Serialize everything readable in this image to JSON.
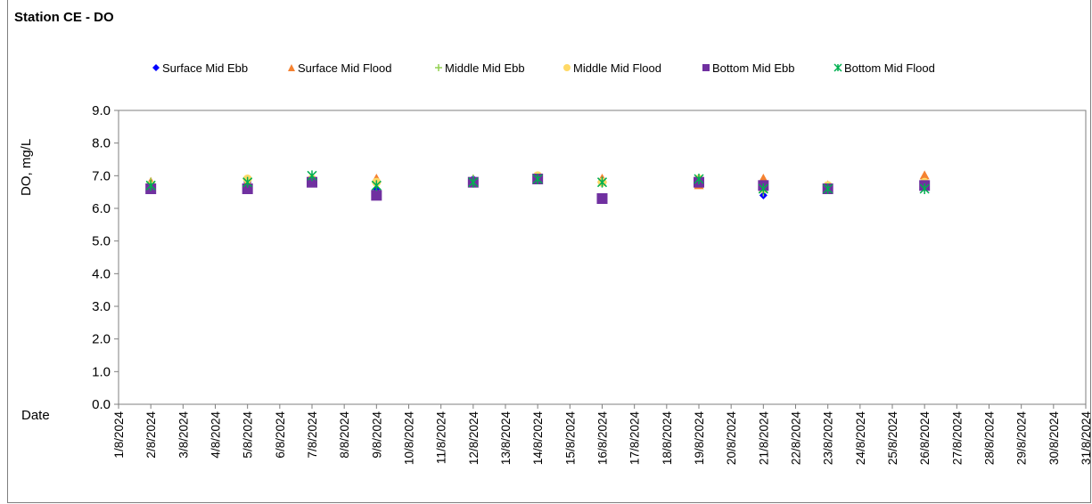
{
  "chart_data": {
    "type": "scatter",
    "title": "Station CE - DO",
    "xlabel": "Date",
    "ylabel": "DO, mg/L",
    "ylim": [
      0,
      9
    ],
    "yticks": [
      "0.0",
      "1.0",
      "2.0",
      "3.0",
      "4.0",
      "5.0",
      "6.0",
      "7.0",
      "8.0",
      "9.0"
    ],
    "x_categories": [
      "1/8/2024",
      "2/8/2024",
      "3/8/2024",
      "4/8/2024",
      "5/8/2024",
      "6/8/2024",
      "7/8/2024",
      "8/8/2024",
      "9/8/2024",
      "10/8/2024",
      "11/8/2024",
      "12/8/2024",
      "13/8/2024",
      "14/8/2024",
      "15/8/2024",
      "16/8/2024",
      "17/8/2024",
      "18/8/2024",
      "19/8/2024",
      "20/8/2024",
      "21/8/2024",
      "22/8/2024",
      "23/8/2024",
      "24/8/2024",
      "25/8/2024",
      "26/8/2024",
      "27/8/2024",
      "28/8/2024",
      "29/8/2024",
      "30/8/2024",
      "31/8/2024"
    ],
    "legend_position": "top",
    "grid": false,
    "series": [
      {
        "name": "Surface Mid Ebb",
        "color": "#0000ff",
        "marker": "diamond",
        "points": [
          [
            "2/8/2024",
            6.7
          ],
          [
            "5/8/2024",
            6.8
          ],
          [
            "7/8/2024",
            6.9
          ],
          [
            "9/8/2024",
            6.6
          ],
          [
            "12/8/2024",
            6.9
          ],
          [
            "14/8/2024",
            6.9
          ],
          [
            "16/8/2024",
            6.8
          ],
          [
            "19/8/2024",
            6.8
          ],
          [
            "21/8/2024",
            6.4
          ],
          [
            "23/8/2024",
            6.6
          ],
          [
            "26/8/2024",
            6.7
          ]
        ]
      },
      {
        "name": "Surface Mid Flood",
        "color": "#f58231",
        "marker": "triangle",
        "points": [
          [
            "2/8/2024",
            6.8
          ],
          [
            "5/8/2024",
            6.8
          ],
          [
            "7/8/2024",
            6.9
          ],
          [
            "9/8/2024",
            6.9
          ],
          [
            "12/8/2024",
            6.8
          ],
          [
            "14/8/2024",
            6.9
          ],
          [
            "16/8/2024",
            6.9
          ],
          [
            "19/8/2024",
            6.7
          ],
          [
            "21/8/2024",
            6.9
          ],
          [
            "23/8/2024",
            6.7
          ],
          [
            "26/8/2024",
            7.0
          ]
        ]
      },
      {
        "name": "Middle Mid Ebb",
        "color": "#92d050",
        "marker": "plus",
        "points": [
          [
            "2/8/2024",
            6.8
          ],
          [
            "5/8/2024",
            6.9
          ],
          [
            "7/8/2024",
            6.9
          ],
          [
            "9/8/2024",
            6.5
          ],
          [
            "12/8/2024",
            6.9
          ],
          [
            "14/8/2024",
            6.9
          ],
          [
            "16/8/2024",
            6.8
          ],
          [
            "19/8/2024",
            6.9
          ],
          [
            "21/8/2024",
            6.5
          ],
          [
            "23/8/2024",
            6.6
          ],
          [
            "26/8/2024",
            6.7
          ]
        ]
      },
      {
        "name": "Middle Mid Flood",
        "color": "#ffd966",
        "marker": "circle",
        "points": [
          [
            "2/8/2024",
            6.7
          ],
          [
            "5/8/2024",
            6.9
          ],
          [
            "7/8/2024",
            6.9
          ],
          [
            "9/8/2024",
            6.8
          ],
          [
            "12/8/2024",
            6.8
          ],
          [
            "14/8/2024",
            7.0
          ],
          [
            "16/8/2024",
            6.8
          ],
          [
            "19/8/2024",
            6.9
          ],
          [
            "21/8/2024",
            6.6
          ],
          [
            "23/8/2024",
            6.7
          ],
          [
            "26/8/2024",
            6.8
          ]
        ]
      },
      {
        "name": "Bottom Mid Ebb",
        "color": "#7030a0",
        "marker": "square",
        "points": [
          [
            "2/8/2024",
            6.6
          ],
          [
            "5/8/2024",
            6.6
          ],
          [
            "7/8/2024",
            6.8
          ],
          [
            "9/8/2024",
            6.4
          ],
          [
            "12/8/2024",
            6.8
          ],
          [
            "14/8/2024",
            6.9
          ],
          [
            "16/8/2024",
            6.3
          ],
          [
            "19/8/2024",
            6.8
          ],
          [
            "21/8/2024",
            6.7
          ],
          [
            "23/8/2024",
            6.6
          ],
          [
            "26/8/2024",
            6.7
          ]
        ]
      },
      {
        "name": "Bottom Mid Flood",
        "color": "#00b050",
        "marker": "x",
        "points": [
          [
            "2/8/2024",
            6.7
          ],
          [
            "5/8/2024",
            6.8
          ],
          [
            "7/8/2024",
            7.0
          ],
          [
            "9/8/2024",
            6.7
          ],
          [
            "12/8/2024",
            6.8
          ],
          [
            "14/8/2024",
            6.9
          ],
          [
            "16/8/2024",
            6.8
          ],
          [
            "19/8/2024",
            6.9
          ],
          [
            "21/8/2024",
            6.6
          ],
          [
            "23/8/2024",
            6.6
          ],
          [
            "26/8/2024",
            6.6
          ]
        ]
      }
    ]
  }
}
